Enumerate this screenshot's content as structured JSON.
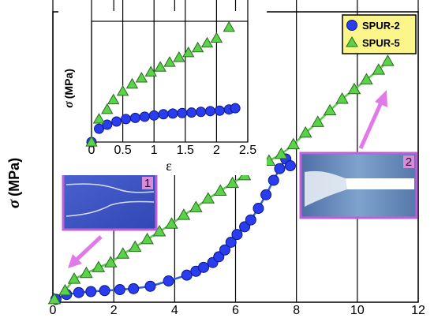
{
  "chart_data": [
    {
      "type": "scatter",
      "title": "",
      "xlabel": "",
      "ylabel_symbol": "σ",
      "ylabel_unit": "(MPa)",
      "xlim": [
        0,
        12
      ],
      "ylim": [
        0,
        30
      ],
      "x_ticks": [
        "0",
        "2",
        "4",
        "6",
        "8",
        "10",
        "12"
      ],
      "y_ticks": [
        "0",
        "5",
        "10",
        "15",
        "20",
        "25",
        "30"
      ],
      "grid": false,
      "legend": "top-right",
      "series": [
        {
          "name": "SPUR-2",
          "marker": "circle",
          "color": "#2a3cf0",
          "line_color": "#2e5fd8",
          "x": [
            0.1,
            0.45,
            0.85,
            1.25,
            1.7,
            2.2,
            2.65,
            3.2,
            3.8,
            4.4,
            4.7,
            4.95,
            5.25,
            5.45,
            5.65,
            5.85,
            6.05,
            6.3,
            6.5,
            6.75,
            7.0,
            7.25,
            7.45,
            7.65,
            7.8
          ],
          "y": [
            0.3,
            0.8,
            1.0,
            1.1,
            1.2,
            1.3,
            1.4,
            1.65,
            2.2,
            2.8,
            3.2,
            3.6,
            4.1,
            4.7,
            5.4,
            6.2,
            7.0,
            7.8,
            8.5,
            9.7,
            11.1,
            12.6,
            13.8,
            14.8,
            14.1
          ]
        },
        {
          "name": "SPUR-5",
          "marker": "triangle",
          "color": "#5ad24a",
          "line_color": "#5cc94a",
          "x": [
            0.05,
            0.4,
            0.7,
            1.1,
            1.5,
            1.9,
            2.3,
            2.7,
            3.1,
            3.5,
            3.9,
            4.3,
            4.7,
            5.1,
            5.5,
            5.9,
            6.3,
            6.7,
            7.1,
            7.5,
            7.9,
            8.3,
            8.7,
            9.1,
            9.5,
            9.9,
            10.3,
            10.7,
            11.0
          ],
          "y": [
            0.3,
            1.2,
            2.4,
            3.0,
            3.6,
            4.1,
            5.0,
            5.7,
            6.5,
            7.3,
            8.1,
            9.0,
            9.8,
            10.7,
            11.5,
            12.3,
            13.1,
            14.0,
            14.6,
            15.3,
            16.3,
            17.5,
            18.6,
            19.8,
            21.0,
            22.0,
            23.0,
            24.0,
            24.9
          ]
        }
      ]
    },
    {
      "type": "scatter",
      "inset": true,
      "xlabel": "ε",
      "ylabel_symbol": "σ",
      "ylabel_unit": "(MPa)",
      "xlim": [
        0,
        2.5
      ],
      "ylim": [
        0,
        5
      ],
      "x_ticks": [
        "0",
        "0.5",
        "1",
        "1.5",
        "2",
        "2.5"
      ],
      "y_ticks": [
        "0",
        "1",
        "2",
        "3",
        "4",
        "5"
      ],
      "grid": false,
      "series": [
        {
          "name": "SPUR-2",
          "marker": "circle",
          "color": "#2a3cf0",
          "x": [
            0.0,
            0.12,
            0.25,
            0.4,
            0.55,
            0.7,
            0.85,
            1.0,
            1.15,
            1.3,
            1.45,
            1.6,
            1.75,
            1.9,
            2.05,
            2.2,
            2.3
          ],
          "y": [
            0.0,
            0.55,
            0.72,
            0.85,
            0.95,
            1.0,
            1.05,
            1.1,
            1.15,
            1.18,
            1.2,
            1.22,
            1.25,
            1.28,
            1.3,
            1.35,
            1.4
          ]
        },
        {
          "name": "SPUR-5",
          "marker": "triangle",
          "color": "#5ad24a",
          "x": [
            0.0,
            0.12,
            0.25,
            0.35,
            0.5,
            0.65,
            0.8,
            0.95,
            1.1,
            1.25,
            1.4,
            1.55,
            1.7,
            1.85,
            2.0,
            2.2
          ],
          "y": [
            0.0,
            0.95,
            1.35,
            1.75,
            2.1,
            2.4,
            2.65,
            2.9,
            3.1,
            3.3,
            3.5,
            3.7,
            3.9,
            4.1,
            4.3,
            4.75
          ]
        }
      ]
    }
  ],
  "photos": {
    "photo1_tag": "1",
    "photo2_tag": "2"
  },
  "colors": {
    "photo_border": "#c060d8",
    "arrow": "#e07ae8",
    "legend_bg": "#fbf58a",
    "photo1_bg": "#3f57c4",
    "photo2_bg": "#5b85b8"
  }
}
